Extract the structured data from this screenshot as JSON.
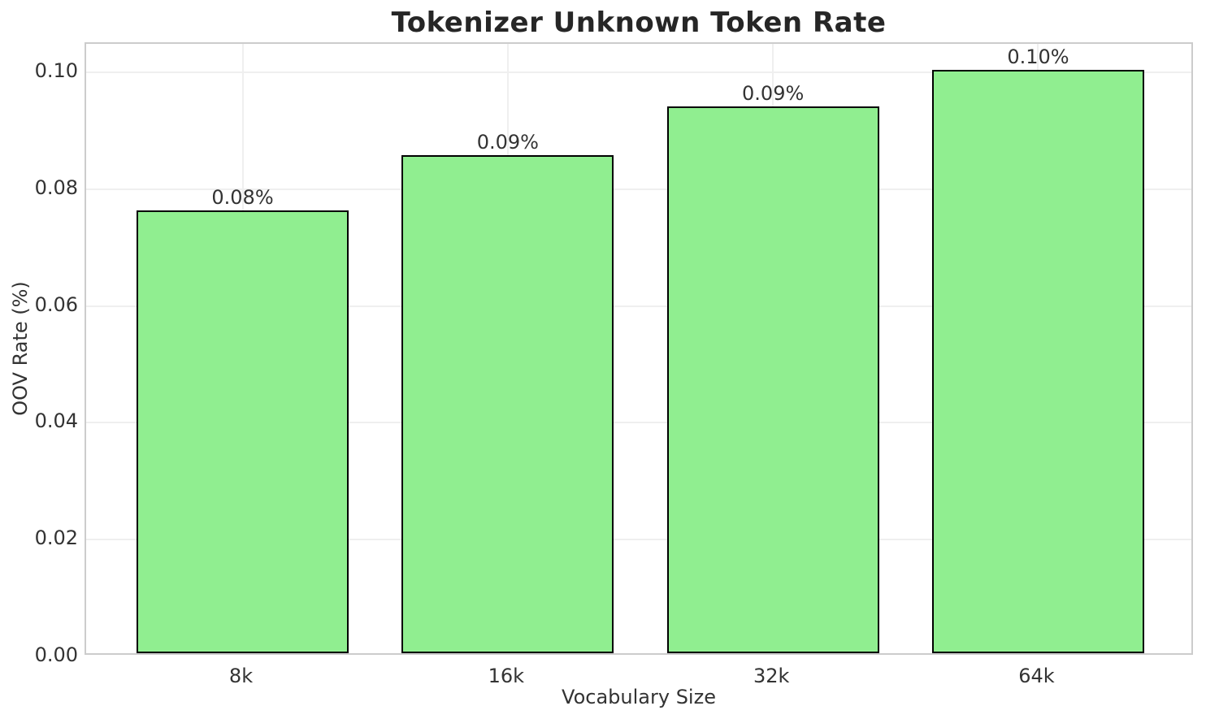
{
  "chart_data": {
    "type": "bar",
    "title": "Tokenizer Unknown Token Rate",
    "xlabel": "Vocabulary Size",
    "ylabel": "OOV Rate (%)",
    "categories": [
      "8k",
      "16k",
      "32k",
      "64k"
    ],
    "values": [
      0.0758,
      0.0853,
      0.0937,
      0.0999
    ],
    "bar_labels": [
      "0.08%",
      "0.09%",
      "0.09%",
      "0.10%"
    ],
    "ytick_values": [
      0.0,
      0.02,
      0.04,
      0.06,
      0.08,
      0.1
    ],
    "ytick_labels": [
      "0.00",
      "0.02",
      "0.04",
      "0.06",
      "0.08",
      "0.10"
    ],
    "ylim": [
      0,
      0.1049
    ],
    "grid": true,
    "legend": null,
    "colors": {
      "bar_fill": "#90EE90",
      "bar_edge": "#000000",
      "grid": "#efefef",
      "spine": "#cccccc",
      "text": "#333333",
      "title": "#262626",
      "background": "#ffffff"
    }
  }
}
